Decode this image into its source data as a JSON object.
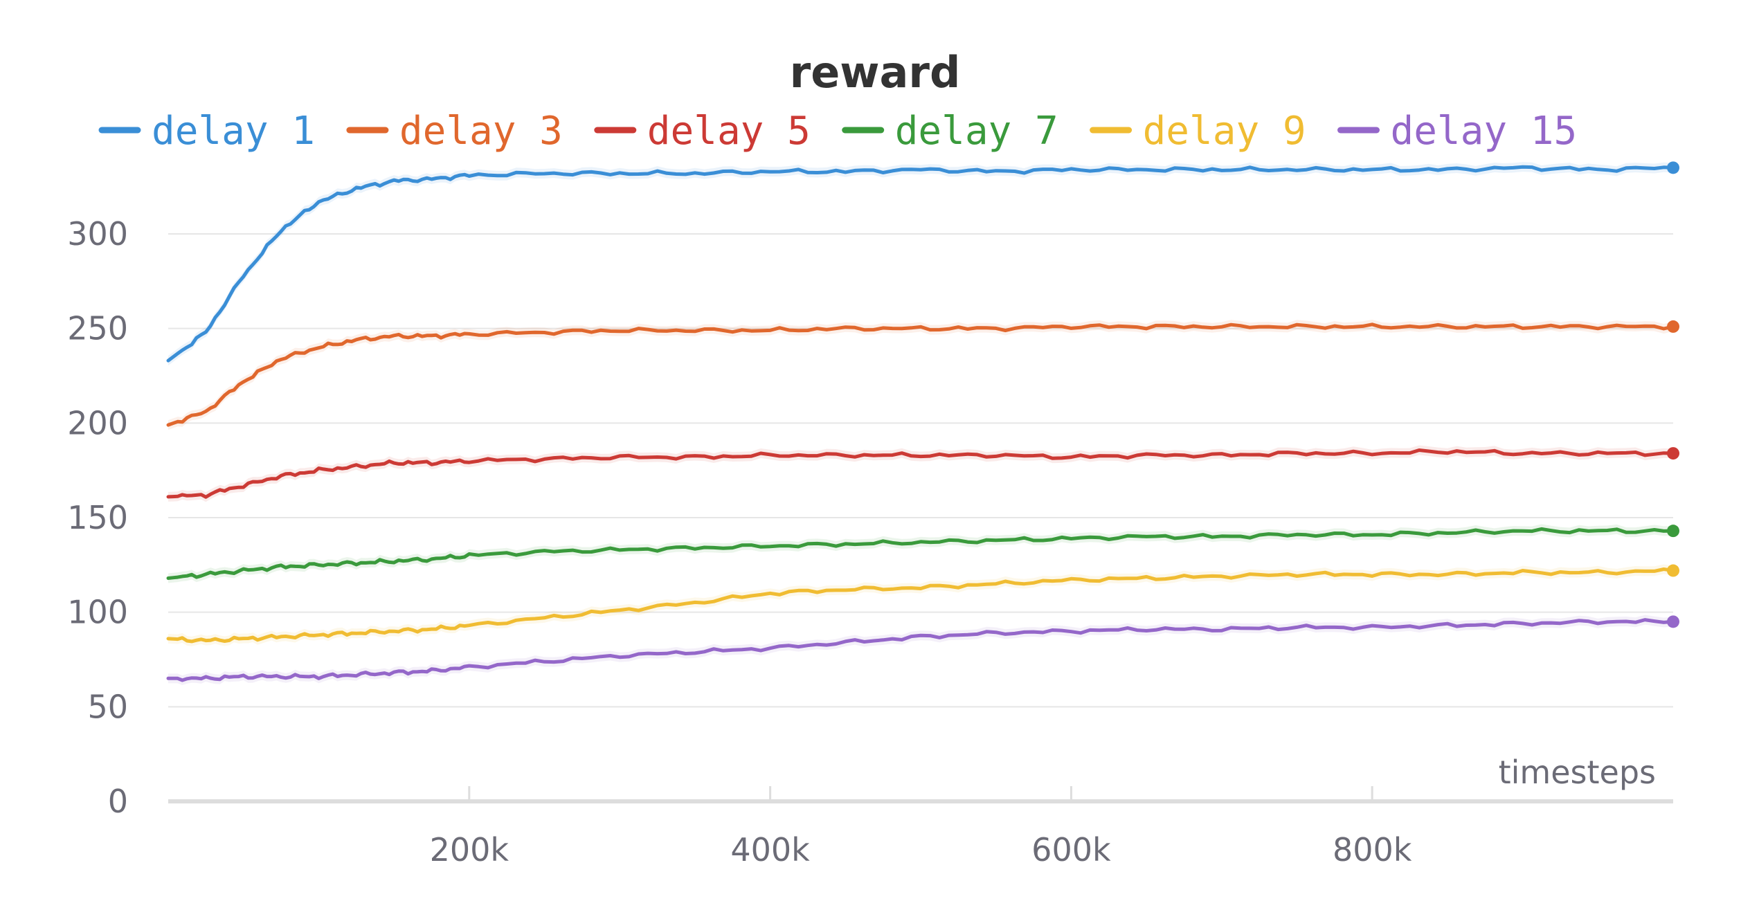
{
  "chart_data": {
    "type": "line",
    "title": "reward",
    "xlabel": "timesteps",
    "ylabel": "",
    "xlim": [
      0,
      1000000
    ],
    "ylim": [
      0,
      345
    ],
    "x_ticks": [
      200000,
      400000,
      600000,
      800000
    ],
    "x_tick_labels": [
      "200k",
      "400k",
      "600k",
      "800k"
    ],
    "y_ticks": [
      0,
      50,
      100,
      150,
      200,
      250,
      300
    ],
    "y_tick_labels": [
      "0",
      "50",
      "100",
      "150",
      "200",
      "250",
      "300"
    ],
    "grid": true,
    "legend_position": "top",
    "x": [
      0,
      25000,
      50000,
      75000,
      100000,
      125000,
      150000,
      175000,
      200000,
      250000,
      300000,
      350000,
      400000,
      450000,
      500000,
      550000,
      600000,
      650000,
      700000,
      750000,
      800000,
      850000,
      900000,
      950000,
      1000000
    ],
    "series": [
      {
        "name": "delay 1",
        "color": "#3a8ed6",
        "values": [
          233,
          248,
          278,
          302,
          317,
          324,
          328,
          329,
          331,
          332,
          332,
          332,
          333,
          333,
          334,
          333,
          334,
          334,
          334,
          334,
          334,
          334,
          335,
          334,
          335
        ]
      },
      {
        "name": "delay 3",
        "color": "#e0672d",
        "values": [
          199,
          206,
          222,
          234,
          240,
          244,
          246,
          246,
          247,
          248,
          249,
          249,
          249,
          250,
          250,
          250,
          251,
          251,
          251,
          251,
          251,
          251,
          251,
          251,
          251
        ]
      },
      {
        "name": "delay 5",
        "color": "#cc3a35",
        "values": [
          161,
          162,
          167,
          172,
          175,
          177,
          179,
          179,
          180,
          181,
          182,
          182,
          183,
          183,
          183,
          183,
          182,
          183,
          183,
          184,
          184,
          185,
          184,
          184,
          184
        ]
      },
      {
        "name": "delay 7",
        "color": "#3a9a3c",
        "values": [
          118,
          120,
          122,
          124,
          125,
          126,
          127,
          128,
          130,
          132,
          133,
          134,
          135,
          136,
          137,
          138,
          139,
          140,
          140,
          141,
          141,
          142,
          143,
          143,
          143
        ]
      },
      {
        "name": "delay 9",
        "color": "#f0bc32",
        "values": [
          86,
          85,
          86,
          87,
          88,
          89,
          90,
          91,
          93,
          97,
          101,
          105,
          110,
          112,
          113,
          115,
          117,
          118,
          119,
          120,
          120,
          120,
          121,
          121,
          122
        ]
      },
      {
        "name": "delay 15",
        "color": "#9467c9",
        "values": [
          65,
          65,
          66,
          66,
          66,
          67,
          68,
          69,
          71,
          74,
          77,
          79,
          81,
          84,
          87,
          89,
          90,
          91,
          91,
          92,
          92,
          93,
          94,
          95,
          95
        ]
      }
    ]
  }
}
